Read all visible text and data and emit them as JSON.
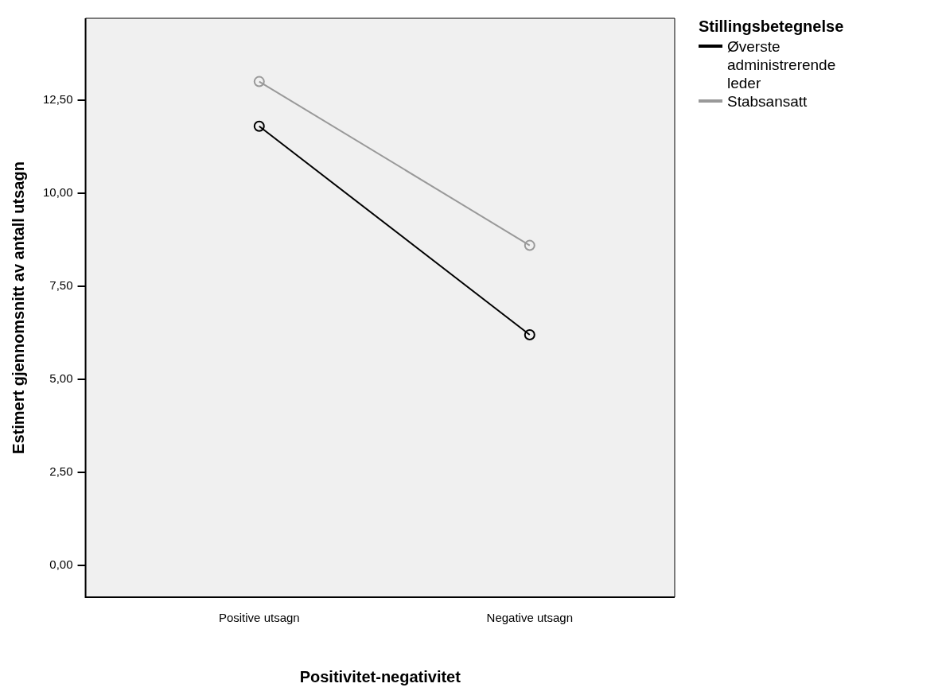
{
  "chart_data": {
    "type": "line",
    "xlabel": "Positivitet-negativitet",
    "ylabel": "Estimert gjennomsnitt av antall utsagn",
    "legend_title": "Stillingsbetegnelse",
    "categories": [
      "Positive utsagn",
      "Negative utsagn"
    ],
    "series": [
      {
        "name": "Øverste administrerende leder",
        "color": "#000000",
        "values": [
          11.8,
          6.2
        ]
      },
      {
        "name": "Stabsansatt",
        "color": "#999999",
        "values": [
          13.0,
          8.6
        ]
      }
    ],
    "ylim": [
      -0.85,
      14.7
    ],
    "yticks": [
      {
        "value": 0,
        "label": "0,00"
      },
      {
        "value": 2.5,
        "label": "2,50"
      },
      {
        "value": 5,
        "label": "5,00"
      },
      {
        "value": 7.5,
        "label": "7,50"
      },
      {
        "value": 10,
        "label": "10,00"
      },
      {
        "value": 12.5,
        "label": "12,50"
      }
    ],
    "grid": false,
    "legend": "right",
    "marker": "circle",
    "line_style": "solid"
  }
}
